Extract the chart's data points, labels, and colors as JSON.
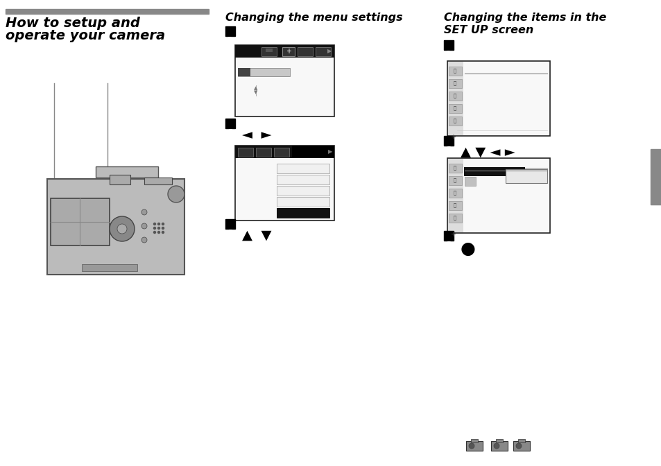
{
  "bg_color": "#ffffff",
  "header_bar_color": "#888888",
  "step_bg": "#000000",
  "step_fg": "#ffffff",
  "title_left_line1": "How to setup and",
  "title_left_line2": "operate your camera",
  "title_mid": "Changing the menu settings",
  "title_right_line1": "Changing the items in the",
  "title_right_line2": "SET UP screen",
  "screen_bg": "#ffffff",
  "screen_border": "#222222",
  "sidebar_gray": "#888888",
  "icon_dark": "#555555",
  "menu_bar_bg": "#000000",
  "menu_highlight": "#000000",
  "menu_gray": "#bbbbbb",
  "right_tab_color": "#888888",
  "cam_body": "#bbbbbb",
  "cam_border": "#555555"
}
